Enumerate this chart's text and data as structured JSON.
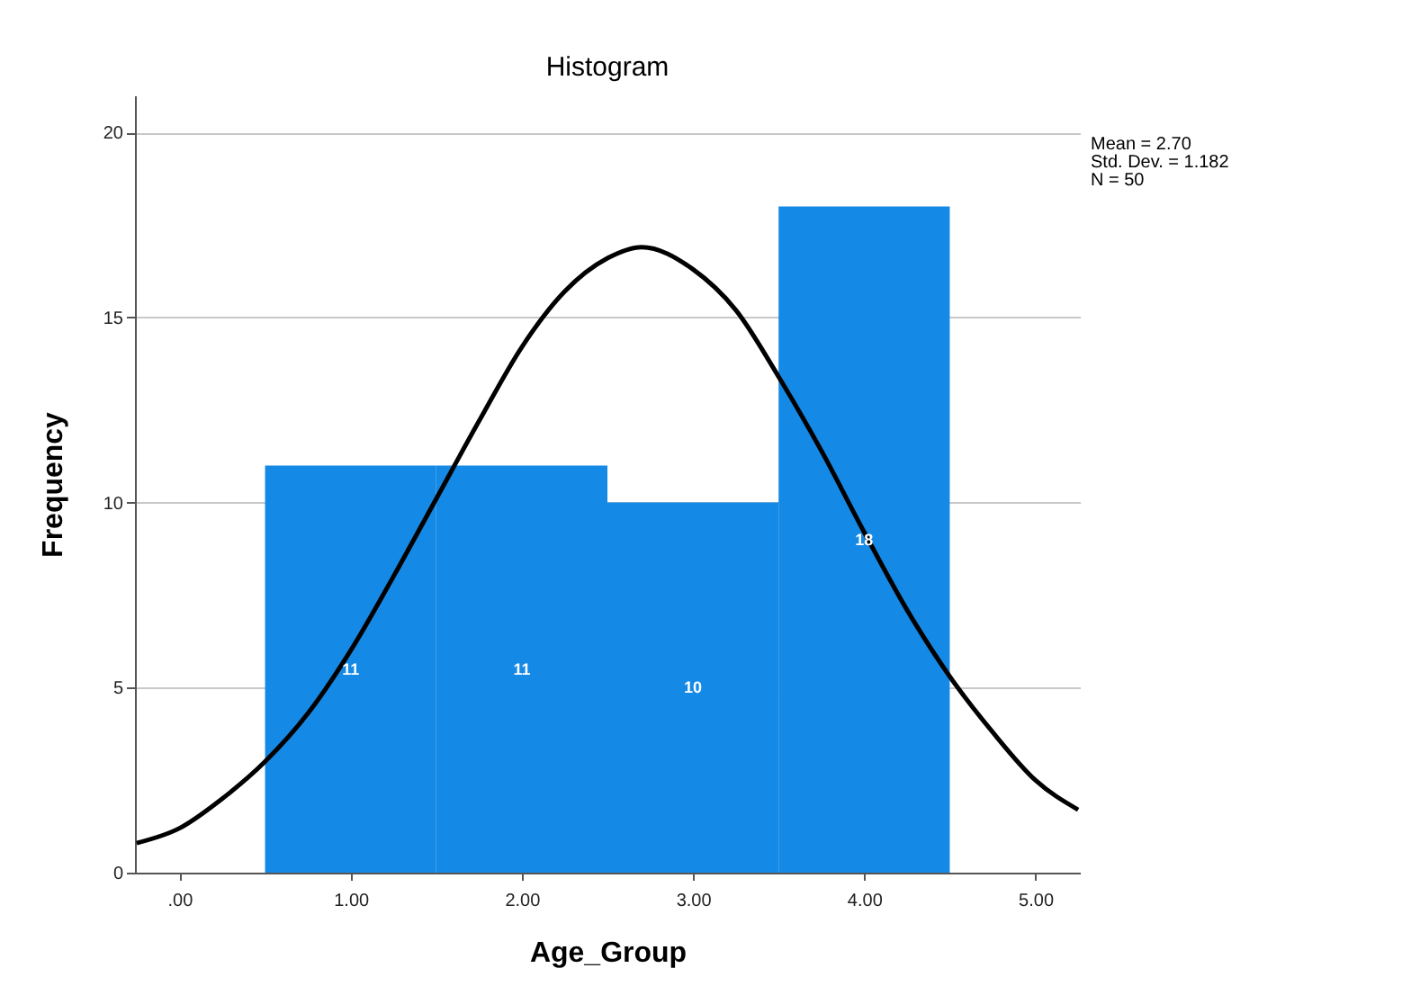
{
  "chart_data": {
    "type": "histogram",
    "title": "Histogram",
    "xlabel": "Age_Group",
    "ylabel": "Frequency",
    "bins": [
      0.5,
      1.5,
      2.5,
      3.5,
      4.5
    ],
    "values": [
      11,
      11,
      10,
      18
    ],
    "color": "#1589e6",
    "value_labels": [
      "11",
      "11",
      "10",
      "18"
    ],
    "series": [
      {
        "type": "line",
        "color": "#000000",
        "x": [
          -0.25,
          0,
          0.25,
          0.5,
          0.75,
          1,
          1.25,
          1.5,
          1.75,
          2,
          2.25,
          2.5,
          2.7,
          3,
          3.25,
          3.5,
          3.75,
          4,
          4.25,
          4.5,
          4.75,
          5,
          5.25
        ],
        "values": [
          0.8,
          1.2,
          2,
          3,
          4.3,
          6,
          8,
          10.1,
          12.2,
          14.2,
          15.7,
          16.6,
          16.9,
          16.3,
          15.2,
          13.4,
          11.4,
          9.2,
          7.1,
          5.3,
          3.8,
          2.5,
          1.7
        ]
      }
    ],
    "xlim": [
      -0.26,
      5.26
    ],
    "xticks": [
      {
        "value": 0,
        "label": ".00"
      },
      {
        "value": 1,
        "label": "1.00"
      },
      {
        "value": 2,
        "label": "2.00"
      },
      {
        "value": 3,
        "label": "3.00"
      },
      {
        "value": 4,
        "label": "4.00"
      },
      {
        "value": 5,
        "label": "5.00"
      }
    ],
    "ylim": [
      0,
      21
    ],
    "yticks": [
      0,
      5,
      10,
      15,
      20
    ],
    "grid": "y",
    "annotations": [
      "Mean = 2.70",
      "Std. Dev. = 1.182",
      "N = 50"
    ]
  }
}
